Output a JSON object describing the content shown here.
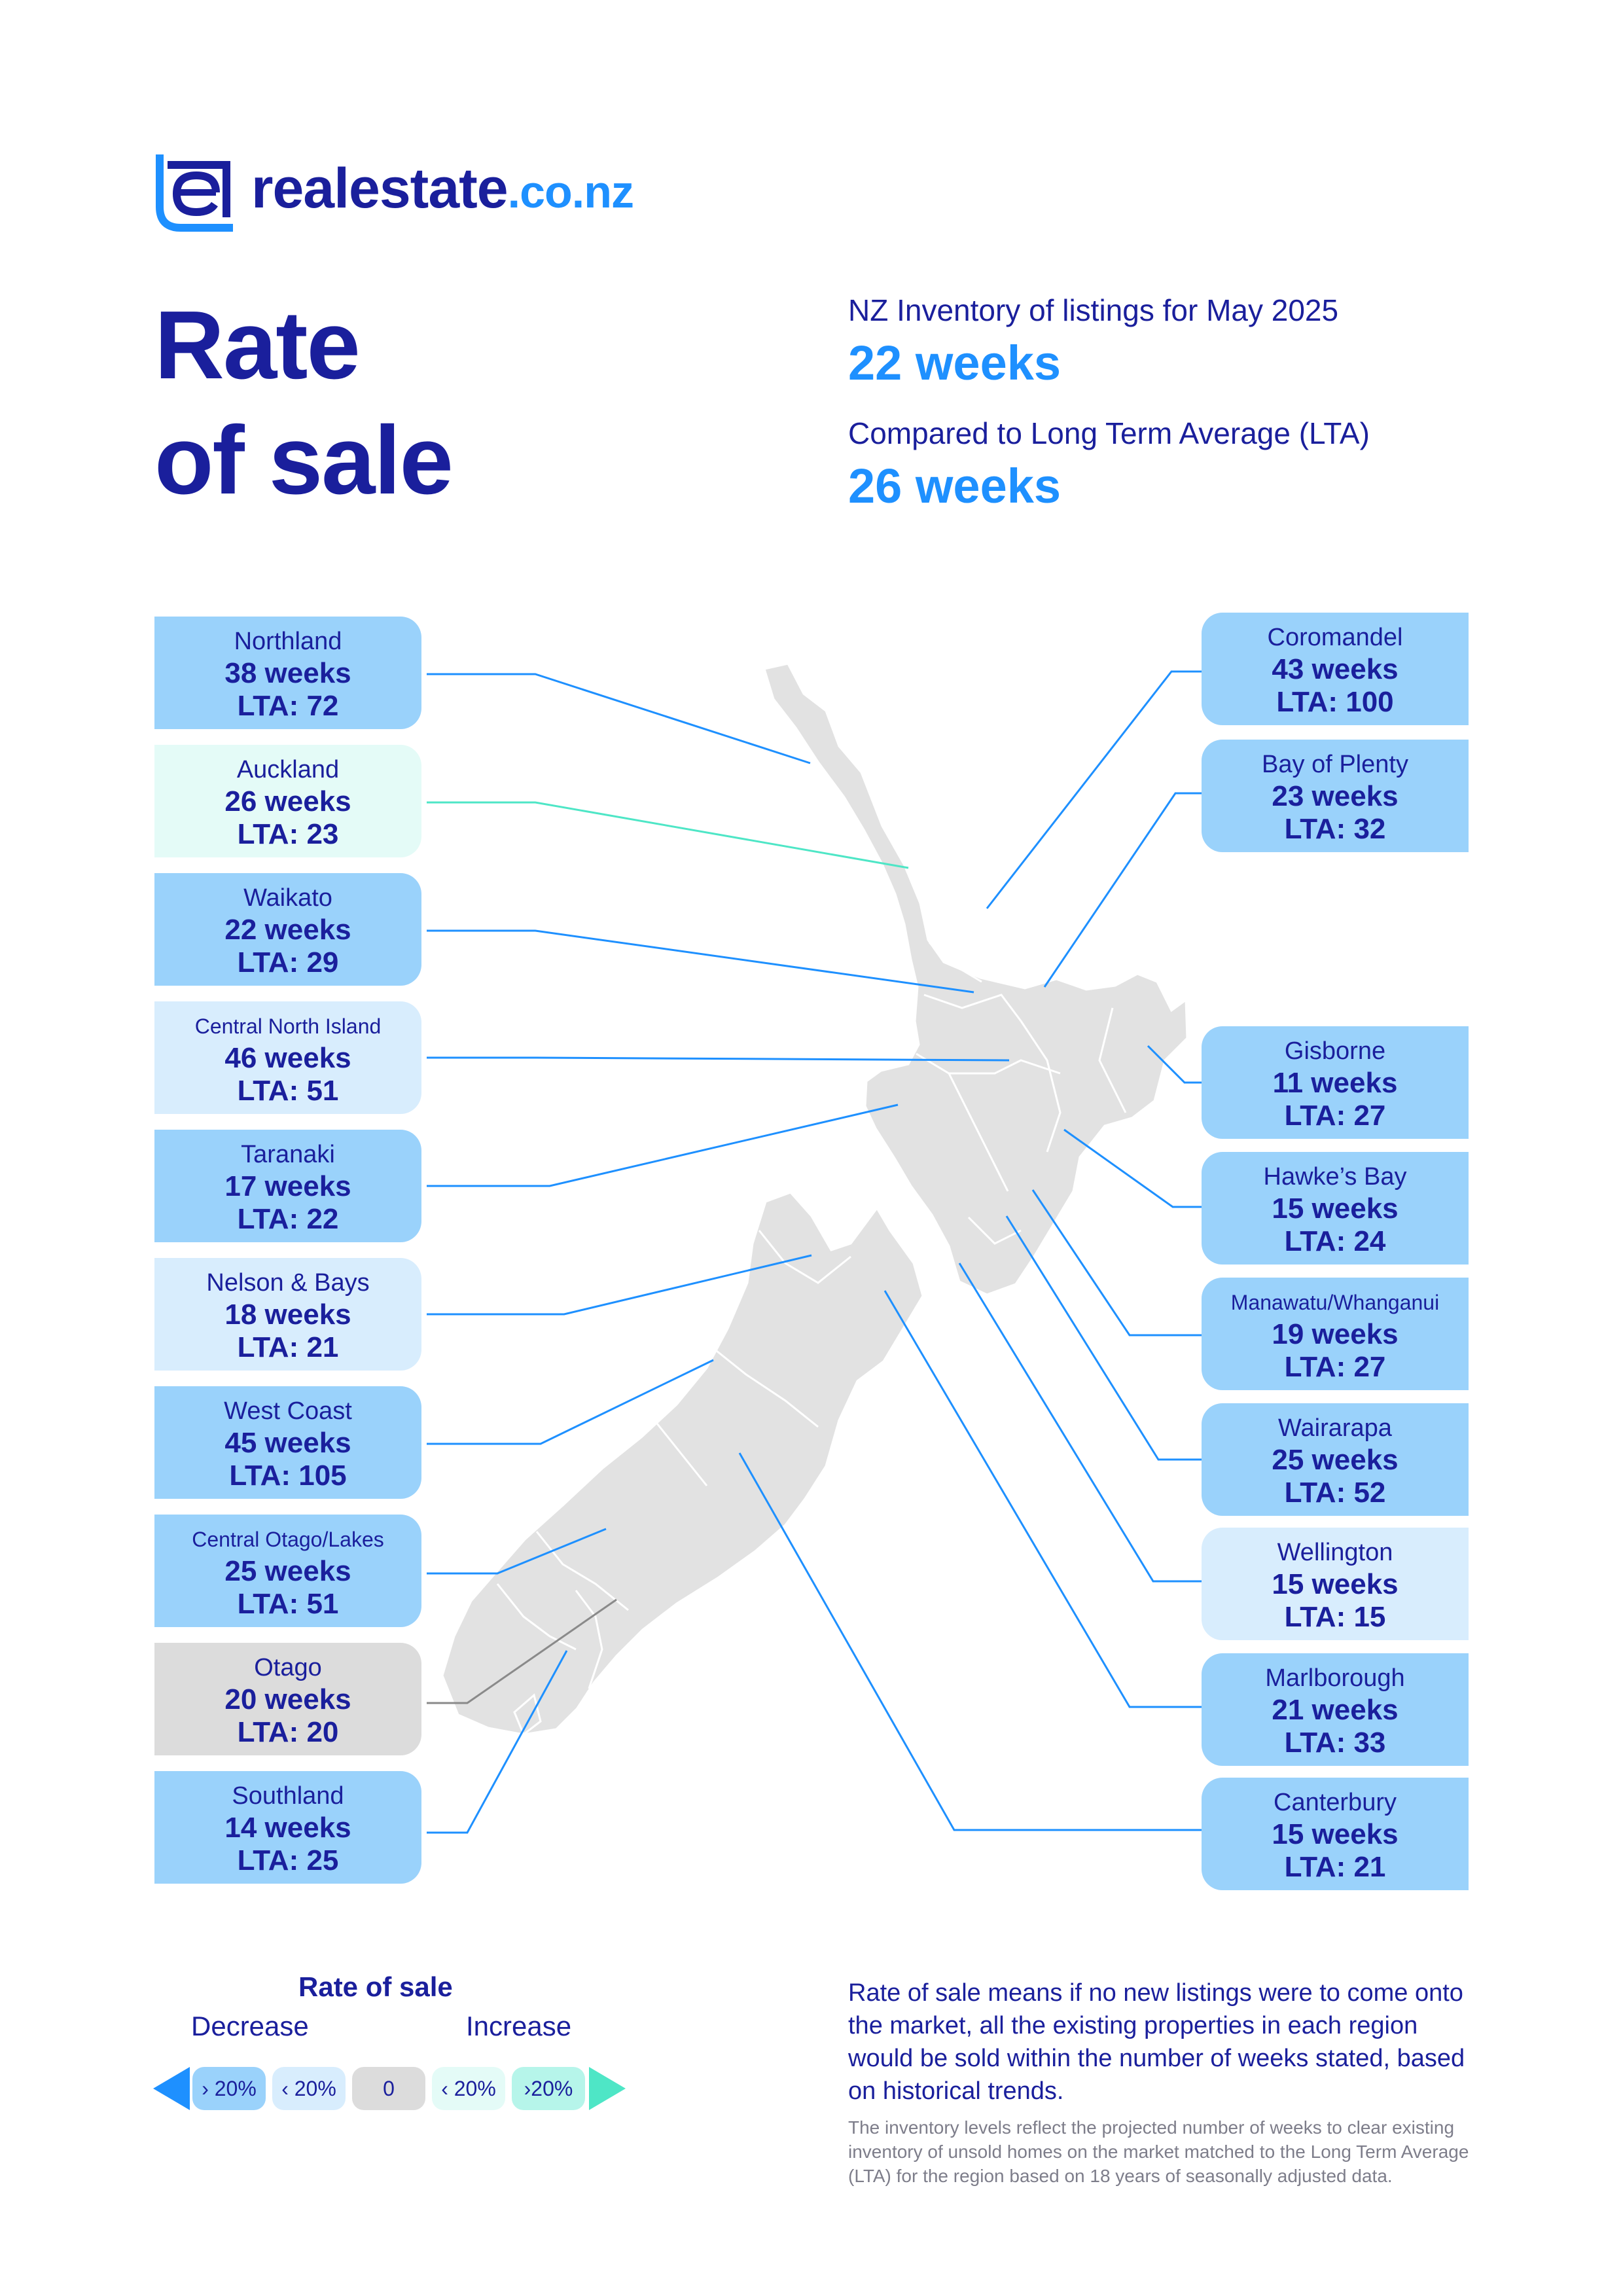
{
  "brand": {
    "name": "realestate",
    "tld": ".co.nz"
  },
  "title": {
    "line1": "Rate",
    "line2": "of sale"
  },
  "header": {
    "inventory_label": "NZ Inventory of listings for May 2025",
    "inventory_value": "22 weeks",
    "lta_label": "Compared to Long Term Average (LTA)",
    "lta_value": "26 weeks"
  },
  "colors": {
    "navy": "#1a1f9c",
    "blue": "#1e90ff",
    "decrease_over_20": "#9ad2fb",
    "decrease_under_20": "#d8edfd",
    "no_change": "#dcdcdc",
    "increase_under_20": "#e4fbf7",
    "increase_over_20": "#b6f5ea",
    "map": "#e2e2e2"
  },
  "regions_left": [
    {
      "name": "Northland",
      "weeks": "38 weeks",
      "lta": "LTA: 72",
      "band": "decrease_over_20"
    },
    {
      "name": "Auckland",
      "weeks": "26 weeks",
      "lta": "LTA: 23",
      "band": "increase_under_20"
    },
    {
      "name": "Waikato",
      "weeks": "22 weeks",
      "lta": "LTA: 29",
      "band": "decrease_over_20"
    },
    {
      "name": "Central North Island",
      "weeks": "46 weeks",
      "lta": "LTA: 51",
      "band": "decrease_under_20"
    },
    {
      "name": "Taranaki",
      "weeks": "17 weeks",
      "lta": "LTA: 22",
      "band": "decrease_over_20"
    },
    {
      "name": "Nelson & Bays",
      "weeks": "18 weeks",
      "lta": "LTA: 21",
      "band": "decrease_under_20"
    },
    {
      "name": "West Coast",
      "weeks": "45 weeks",
      "lta": "LTA: 105",
      "band": "decrease_over_20"
    },
    {
      "name": "Central Otago/Lakes",
      "weeks": "25 weeks",
      "lta": "LTA: 51",
      "band": "decrease_over_20"
    },
    {
      "name": "Otago",
      "weeks": "20 weeks",
      "lta": "LTA: 20",
      "band": "no_change"
    },
    {
      "name": "Southland",
      "weeks": "14 weeks",
      "lta": "LTA: 25",
      "band": "decrease_over_20"
    }
  ],
  "regions_right": [
    {
      "name": "Coromandel",
      "weeks": "43 weeks",
      "lta": "LTA: 100",
      "band": "decrease_over_20"
    },
    {
      "name": "Bay of Plenty",
      "weeks": "23 weeks",
      "lta": "LTA: 32",
      "band": "decrease_over_20"
    },
    {
      "name": "Gisborne",
      "weeks": "11 weeks",
      "lta": "LTA: 27",
      "band": "decrease_over_20"
    },
    {
      "name": "Hawke’s Bay",
      "weeks": "15 weeks",
      "lta": "LTA: 24",
      "band": "decrease_over_20"
    },
    {
      "name": "Manawatu/Whanganui",
      "weeks": "19 weeks",
      "lta": "LTA: 27",
      "band": "decrease_over_20"
    },
    {
      "name": "Wairarapa",
      "weeks": "25 weeks",
      "lta": "LTA: 52",
      "band": "decrease_over_20"
    },
    {
      "name": "Wellington",
      "weeks": "15 weeks",
      "lta": "LTA: 15",
      "band": "decrease_under_20"
    },
    {
      "name": "Marlborough",
      "weeks": "21 weeks",
      "lta": "LTA: 33",
      "band": "decrease_over_20"
    },
    {
      "name": "Canterbury",
      "weeks": "15 weeks",
      "lta": "LTA: 21",
      "band": "decrease_over_20"
    }
  ],
  "legend": {
    "title": "Rate of sale",
    "decrease_label": "Decrease",
    "increase_label": "Increase",
    "items": [
      "› 20%",
      "‹ 20%",
      "0",
      "‹ 20%",
      "›20%"
    ]
  },
  "description": "Rate of sale means if no new listings were to come onto the market, all the existing properties in each region would be sold within the number of weeks stated, based on historical trends.",
  "footnote": "The inventory levels reflect the projected number of weeks to clear existing inventory of unsold homes on the market matched to the Long Term Average (LTA) for the region based on 18 years of seasonally adjusted data."
}
